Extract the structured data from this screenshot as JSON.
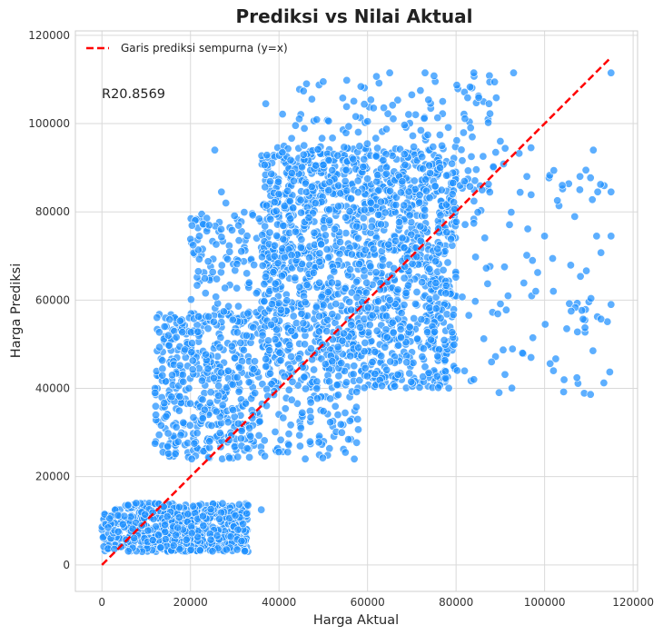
{
  "chart_data": {
    "type": "scatter",
    "title": "Prediksi vs Nilai Aktual",
    "xlabel": "Harga Aktual",
    "ylabel": "Harga Prediksi",
    "xlim": [
      -6000,
      121000
    ],
    "ylim": [
      -6000,
      121000
    ],
    "xticks": [
      0,
      20000,
      40000,
      60000,
      80000,
      100000,
      120000
    ],
    "yticks": [
      0,
      20000,
      40000,
      60000,
      80000,
      100000,
      120000
    ],
    "xtick_labels": [
      "0",
      "20000",
      "40000",
      "60000",
      "80000",
      "100000",
      "120000"
    ],
    "ytick_labels": [
      "0",
      "20000",
      "40000",
      "60000",
      "80000",
      "100000",
      "120000"
    ],
    "grid": true,
    "legend_position": "top-left",
    "annotation": "R20.8569",
    "point_color": "#1e90ff",
    "line_color": "#ff0000",
    "series": [
      {
        "name": "Garis prediksi sempurna (y=x)",
        "kind": "line",
        "style": "dashed",
        "x": [
          0,
          115000
        ],
        "y": [
          0,
          115000
        ]
      }
    ],
    "clusters": [
      {
        "x_range": [
          0,
          33000
        ],
        "y_range": [
          3000,
          14000
        ],
        "count": 600
      },
      {
        "x_range": [
          12000,
          36000
        ],
        "y_range": [
          24000,
          57000
        ],
        "count": 450
      },
      {
        "x_range": [
          20000,
          38000
        ],
        "y_range": [
          55000,
          80000
        ],
        "count": 120
      },
      {
        "x_range": [
          36000,
          80000
        ],
        "y_range": [
          40000,
          95000
        ],
        "count": 1600
      },
      {
        "x_range": [
          40000,
          90000
        ],
        "y_range": [
          84000,
          111000
        ],
        "count": 160
      },
      {
        "x_range": [
          75000,
          115000
        ],
        "y_range": [
          38000,
          95000
        ],
        "count": 120
      },
      {
        "x_range": [
          36000,
          58000
        ],
        "y_range": [
          24000,
          40000
        ],
        "count": 90
      }
    ],
    "highlight_points": [
      {
        "x": 115000,
        "y": 111500
      },
      {
        "x": 115000,
        "y": 84500
      },
      {
        "x": 115000,
        "y": 74500
      },
      {
        "x": 115000,
        "y": 59000
      },
      {
        "x": 111000,
        "y": 94000
      },
      {
        "x": 112000,
        "y": 84500
      },
      {
        "x": 106000,
        "y": 57500
      },
      {
        "x": 105000,
        "y": 53500
      },
      {
        "x": 102000,
        "y": 44000
      },
      {
        "x": 93000,
        "y": 111500
      },
      {
        "x": 84000,
        "y": 111500
      },
      {
        "x": 73000,
        "y": 111500
      },
      {
        "x": 65000,
        "y": 111500
      },
      {
        "x": 50000,
        "y": 109500
      },
      {
        "x": 37000,
        "y": 104500
      },
      {
        "x": 25500,
        "y": 94000
      },
      {
        "x": 22000,
        "y": 74500
      },
      {
        "x": 12000,
        "y": 40000
      },
      {
        "x": 12000,
        "y": 39000
      },
      {
        "x": 15000,
        "y": 52000
      },
      {
        "x": 57000,
        "y": 24000
      },
      {
        "x": 55000,
        "y": 25500
      },
      {
        "x": 12000,
        "y": 27500
      },
      {
        "x": 27000,
        "y": 84500
      },
      {
        "x": 28000,
        "y": 82000
      },
      {
        "x": 36000,
        "y": 12500
      },
      {
        "x": 33000,
        "y": 13500
      },
      {
        "x": 60000,
        "y": 100500
      },
      {
        "x": 70000,
        "y": 106500
      },
      {
        "x": 90000,
        "y": 96000
      },
      {
        "x": 96000,
        "y": 88000
      },
      {
        "x": 104000,
        "y": 86000
      },
      {
        "x": 108000,
        "y": 88000
      },
      {
        "x": 100000,
        "y": 74500
      },
      {
        "x": 98000,
        "y": 62000
      },
      {
        "x": 95000,
        "y": 48000
      },
      {
        "x": 88000,
        "y": 46000
      },
      {
        "x": 84000,
        "y": 42000
      }
    ]
  }
}
